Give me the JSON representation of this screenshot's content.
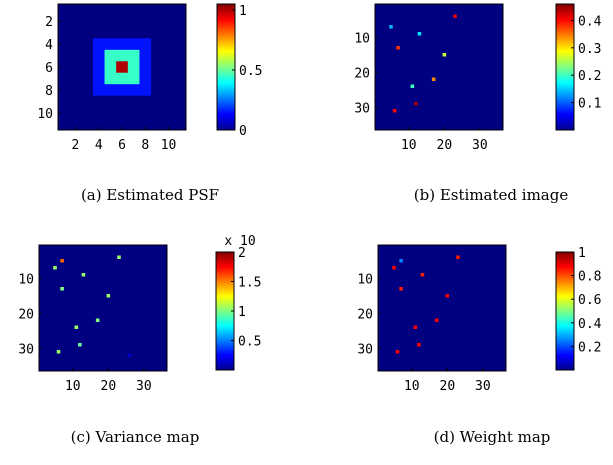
{
  "chart_data": [
    {
      "id": "a",
      "type": "heatmap",
      "caption": "(a) Estimated PSF",
      "x_range": [
        0.5,
        11.5
      ],
      "y_range": [
        0.5,
        11.5
      ],
      "xticks": [
        2,
        4,
        6,
        8,
        10
      ],
      "yticks": [
        2,
        4,
        6,
        8,
        10
      ],
      "background_value": 0.0,
      "colorbar": {
        "min": 0,
        "max": 1.05,
        "ticks": [
          0,
          0.5,
          1
        ],
        "tick_labels": [
          "0",
          "0.5",
          "1"
        ]
      },
      "cells": [
        {
          "x": 4,
          "y": 4,
          "w": 5,
          "h": 5,
          "value": 0.15
        },
        {
          "x": 5,
          "y": 5,
          "w": 3,
          "h": 3,
          "value": 0.45
        },
        {
          "x": 6,
          "y": 6,
          "w": 1,
          "h": 1,
          "value": 1.0
        }
      ]
    },
    {
      "id": "b",
      "type": "heatmap",
      "caption": "(b) Estimated image",
      "x_range": [
        0.5,
        36.5
      ],
      "y_range": [
        0.5,
        36.5
      ],
      "xticks": [
        10,
        20,
        30
      ],
      "yticks": [
        10,
        20,
        30
      ],
      "background_value": 0.0,
      "colorbar": {
        "min": 0,
        "max": 0.46,
        "ticks": [
          0.1,
          0.2,
          0.3,
          0.4
        ],
        "tick_labels": [
          "0.1",
          "0.2",
          "0.3",
          "0.4"
        ]
      },
      "points": [
        {
          "x": 5,
          "y": 7,
          "value": 0.14
        },
        {
          "x": 13,
          "y": 9,
          "value": 0.16
        },
        {
          "x": 23,
          "y": 4,
          "value": 0.41
        },
        {
          "x": 20,
          "y": 15,
          "value": 0.26
        },
        {
          "x": 7,
          "y": 13,
          "value": 0.38
        },
        {
          "x": 17,
          "y": 22,
          "value": 0.34
        },
        {
          "x": 11,
          "y": 24,
          "value": 0.2
        },
        {
          "x": 12,
          "y": 29,
          "value": 0.44
        },
        {
          "x": 6,
          "y": 31,
          "value": 0.4
        }
      ]
    },
    {
      "id": "c",
      "type": "heatmap",
      "caption": "(c) Variance map",
      "x_range": [
        0.5,
        36.5
      ],
      "y_range": [
        0.5,
        36.5
      ],
      "xticks": [
        10,
        20,
        30
      ],
      "yticks": [
        10,
        20,
        30
      ],
      "background_value": 0.0,
      "colorbar": {
        "min": 0,
        "max": 2,
        "ticks": [
          0.5,
          1,
          1.5,
          2
        ],
        "tick_labels": [
          "0.5",
          "1",
          "1.5",
          "2"
        ],
        "exponent_label": "x 10"
      },
      "points": [
        {
          "x": 7,
          "y": 5,
          "value": 1.55
        },
        {
          "x": 23,
          "y": 4,
          "value": 1.05
        },
        {
          "x": 5,
          "y": 7,
          "value": 1.05
        },
        {
          "x": 13,
          "y": 9,
          "value": 1.05
        },
        {
          "x": 7,
          "y": 13,
          "value": 1.0
        },
        {
          "x": 20,
          "y": 15,
          "value": 1.05
        },
        {
          "x": 17,
          "y": 22,
          "value": 1.0
        },
        {
          "x": 11,
          "y": 24,
          "value": 1.05
        },
        {
          "x": 12,
          "y": 29,
          "value": 0.95
        },
        {
          "x": 6,
          "y": 31,
          "value": 1.05
        },
        {
          "x": 26,
          "y": 32,
          "value": 0.15
        }
      ]
    },
    {
      "id": "d",
      "type": "heatmap",
      "caption": "(d) Weight map",
      "x_range": [
        0.5,
        36.5
      ],
      "y_range": [
        0.5,
        36.5
      ],
      "xticks": [
        10,
        20,
        30
      ],
      "yticks": [
        10,
        20,
        30
      ],
      "background_value": 0.0,
      "colorbar": {
        "min": 0,
        "max": 1,
        "ticks": [
          0.2,
          0.4,
          0.6,
          0.8,
          1
        ],
        "tick_labels": [
          "0.2",
          "0.4",
          "0.6",
          "0.8",
          "1"
        ]
      },
      "points": [
        {
          "x": 7,
          "y": 5,
          "value": 0.25
        },
        {
          "x": 23,
          "y": 4,
          "value": 0.85
        },
        {
          "x": 5,
          "y": 7,
          "value": 0.88
        },
        {
          "x": 13,
          "y": 9,
          "value": 0.85
        },
        {
          "x": 7,
          "y": 13,
          "value": 0.85
        },
        {
          "x": 20,
          "y": 15,
          "value": 0.88
        },
        {
          "x": 17,
          "y": 22,
          "value": 0.88
        },
        {
          "x": 11,
          "y": 24,
          "value": 0.88
        },
        {
          "x": 12,
          "y": 29,
          "value": 0.88
        },
        {
          "x": 6,
          "y": 31,
          "value": 0.88
        }
      ]
    }
  ]
}
